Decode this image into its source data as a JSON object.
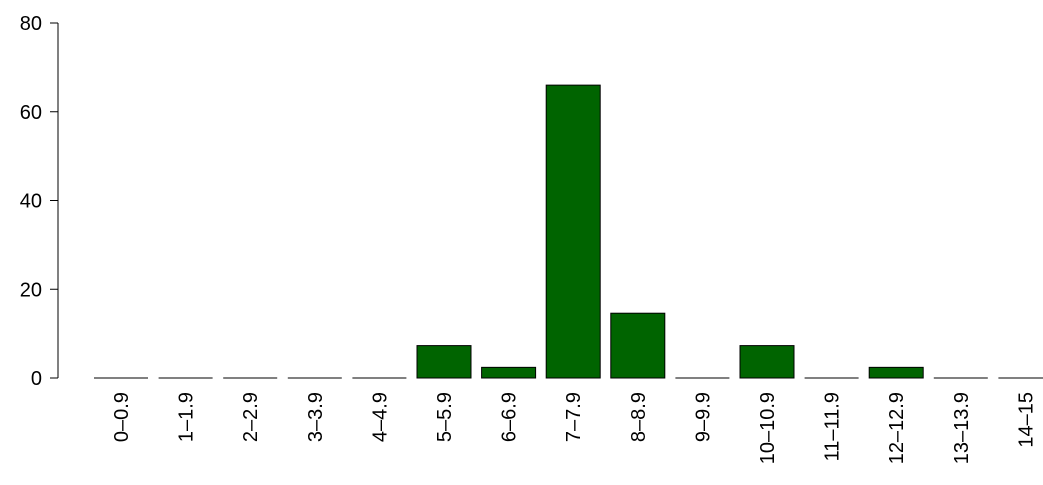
{
  "chart_data": {
    "type": "bar",
    "categories": [
      "0–0.9",
      "1–1.9",
      "2–2.9",
      "3–3.9",
      "4–4.9",
      "5–5.9",
      "6–6.9",
      "7–7.9",
      "8–8.9",
      "9–9.9",
      "10–10.9",
      "11–11.9",
      "12–12.9",
      "13–13.9",
      "14–15"
    ],
    "values": [
      0,
      0,
      0,
      0,
      0,
      7.3,
      2.4,
      66,
      14.6,
      0,
      7.3,
      0,
      2.4,
      0,
      0
    ],
    "yticks": [
      "0",
      "20",
      "40",
      "60",
      "80"
    ],
    "ylim": [
      0,
      80
    ],
    "title": "",
    "xlabel": "",
    "ylabel": "",
    "grid": false,
    "bar_color": "#006400",
    "bar_edge_color": "#000000"
  }
}
